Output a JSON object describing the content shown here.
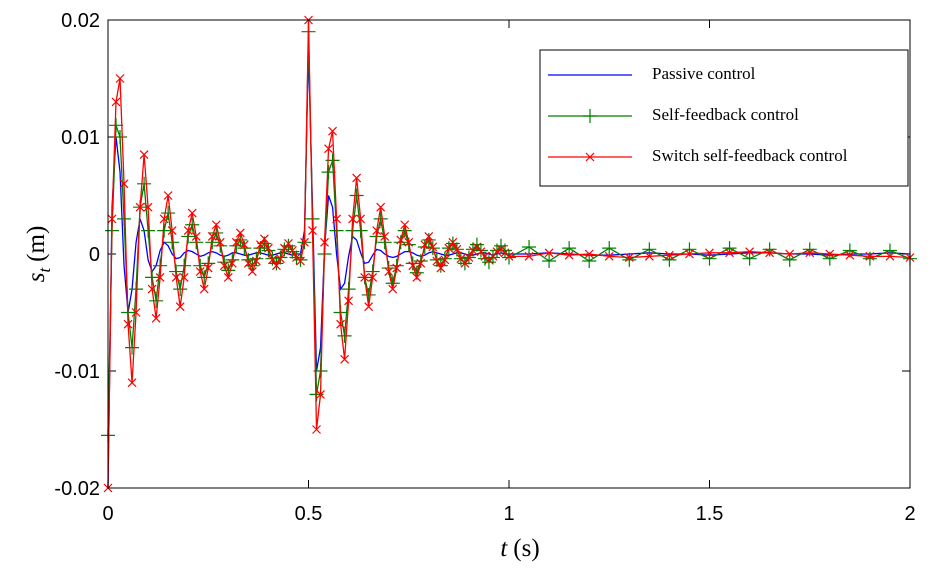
{
  "chart_data": {
    "type": "line",
    "xlabel": {
      "symbol": "t",
      "unit": "(s)"
    },
    "ylabel": {
      "symbol": "s",
      "subscript": "t",
      "unit": "(m)"
    },
    "xlim": [
      0,
      2
    ],
    "xticks": [
      0,
      0.5,
      1,
      1.5,
      2
    ],
    "ylim": [
      -0.02,
      0.02
    ],
    "yticks": [
      0.02,
      0.01,
      0,
      -0.01,
      -0.02
    ],
    "grid": false,
    "legend": "upper right",
    "x": [
      0,
      0.01,
      0.02,
      0.03,
      0.04,
      0.05,
      0.06,
      0.07,
      0.08,
      0.09,
      0.1,
      0.11,
      0.12,
      0.13,
      0.14,
      0.15,
      0.16,
      0.17,
      0.18,
      0.19,
      0.2,
      0.21,
      0.22,
      0.23,
      0.24,
      0.25,
      0.26,
      0.27,
      0.28,
      0.29,
      0.3,
      0.31,
      0.32,
      0.33,
      0.34,
      0.35,
      0.36,
      0.37,
      0.38,
      0.39,
      0.4,
      0.41,
      0.42,
      0.43,
      0.44,
      0.45,
      0.46,
      0.47,
      0.48,
      0.49,
      0.5,
      0.51,
      0.52,
      0.53,
      0.54,
      0.55,
      0.56,
      0.57,
      0.58,
      0.59,
      0.6,
      0.61,
      0.62,
      0.63,
      0.64,
      0.65,
      0.66,
      0.67,
      0.68,
      0.69,
      0.7,
      0.71,
      0.72,
      0.73,
      0.74,
      0.75,
      0.76,
      0.77,
      0.78,
      0.79,
      0.8,
      0.81,
      0.82,
      0.83,
      0.84,
      0.85,
      0.86,
      0.87,
      0.88,
      0.89,
      0.9,
      0.91,
      0.92,
      0.93,
      0.94,
      0.95,
      0.96,
      0.97,
      0.98,
      0.99,
      1.0,
      1.05,
      1.1,
      1.15,
      1.2,
      1.25,
      1.3,
      1.35,
      1.4,
      1.45,
      1.5,
      1.55,
      1.6,
      1.65,
      1.7,
      1.75,
      1.8,
      1.85,
      1.9,
      1.95,
      2.0
    ],
    "series": [
      {
        "name": "Passive control",
        "color": "#0000ff",
        "marker": "none",
        "values": [
          -0.02,
          0.004,
          0.01,
          0.007,
          -0.001,
          -0.005,
          -0.003,
          0.001,
          0.003,
          0.002,
          -0.0005,
          -0.0015,
          -0.001,
          0.0003,
          0.001,
          0.0007,
          0,
          -0.0004,
          -0.0003,
          0.0001,
          0.0003,
          0.0002,
          0,
          -0.0002,
          -0.0001,
          0.0001,
          0.0002,
          0.0001,
          -0.0001,
          -0.0002,
          -0.0001,
          0.0001,
          0.0001,
          0,
          -0.0001,
          -0.0001,
          0,
          0.0001,
          0.0001,
          0,
          -0.0001,
          -0.0001,
          0,
          0.0001,
          0.0001,
          0,
          -0.0001,
          0,
          0,
          0.002,
          0.0175,
          0.004,
          -0.01,
          -0.008,
          0.0005,
          0.005,
          0.004,
          0,
          -0.003,
          -0.0025,
          -0.0002,
          0.0015,
          0.0012,
          0.0001,
          -0.0008,
          -0.0007,
          -0.0001,
          0.0004,
          0.0003,
          0,
          -0.0002,
          -0.0003,
          -0.0002,
          0,
          0.0002,
          0.0002,
          0.0001,
          -0.0001,
          -0.0002,
          -0.0001,
          0.0001,
          0.0002,
          0.0001,
          0,
          -0.0001,
          -0.0001,
          0,
          0.0001,
          0.0001,
          0,
          -0.0001,
          -0.0001,
          0,
          0.0001,
          0.0001,
          0,
          -0.0001,
          0,
          0.0001,
          0,
          0,
          0,
          0.0001,
          0,
          -0.0001,
          -0.0001,
          0,
          0.0001,
          0,
          0,
          -0.0001,
          0,
          0.0001,
          0.0001,
          0,
          0,
          -0.0001,
          0,
          0,
          0.0001,
          0
        ]
      },
      {
        "name": "Self-feedback control",
        "color": "#008000",
        "marker": "+",
        "values": [
          -0.0155,
          0.002,
          0.011,
          0.01,
          0.003,
          -0.005,
          -0.008,
          -0.003,
          0.004,
          0.006,
          0.002,
          -0.002,
          -0.004,
          -0.001,
          0.002,
          0.0035,
          0.001,
          -0.0015,
          -0.003,
          -0.001,
          0.0015,
          0.0025,
          0.001,
          -0.001,
          -0.002,
          -0.0008,
          0.001,
          0.0018,
          0.0007,
          -0.0007,
          -0.0014,
          -0.0005,
          0.0007,
          0.0012,
          0.0005,
          -0.0005,
          -0.001,
          -0.0004,
          0.0005,
          0.0009,
          0.0003,
          -0.0004,
          -0.0008,
          -0.0003,
          0.0004,
          0.0007,
          0.0002,
          -0.0003,
          -0.0005,
          0.001,
          0.019,
          0.003,
          -0.012,
          -0.01,
          0,
          0.007,
          0.008,
          0.002,
          -0.005,
          -0.007,
          -0.003,
          0.002,
          0.005,
          0.002,
          -0.002,
          -0.0035,
          -0.0015,
          0.0015,
          0.003,
          0.001,
          -0.0012,
          -0.0025,
          -0.001,
          0.001,
          0.002,
          0.0008,
          -0.0008,
          -0.0016,
          -0.0006,
          0.0006,
          0.0012,
          0.0005,
          -0.0005,
          -0.001,
          -0.0004,
          0.0005,
          0.0009,
          0.0004,
          -0.0004,
          -0.0008,
          -0.0003,
          0.0004,
          0.0008,
          0.0003,
          -0.0004,
          -0.0007,
          -0.0003,
          0.0003,
          0.0007,
          0.0003,
          -0.0003,
          0.0006,
          -0.0006,
          0.0005,
          -0.0006,
          0.0005,
          -0.0005,
          0.0004,
          -0.0005,
          0.0004,
          -0.0004,
          0.0005,
          -0.0004,
          0.0004,
          -0.0005,
          0.0004,
          -0.0004,
          0.0003,
          -0.0004,
          0.0003,
          -0.0004
        ]
      },
      {
        "name": "Switch self-feedback control",
        "color": "#ff0000",
        "marker": "x",
        "values": [
          -0.02,
          0.003,
          0.013,
          0.015,
          0.006,
          -0.006,
          -0.011,
          -0.005,
          0.004,
          0.0085,
          0.004,
          -0.003,
          -0.0055,
          -0.002,
          0.003,
          0.005,
          0.002,
          -0.002,
          -0.0045,
          -0.002,
          0.002,
          0.0035,
          0.0015,
          -0.0015,
          -0.003,
          -0.0012,
          0.0015,
          0.0025,
          0.001,
          -0.001,
          -0.002,
          -0.0008,
          0.001,
          0.0018,
          0.0008,
          -0.0008,
          -0.0015,
          -0.0006,
          0.0008,
          0.0013,
          0.0005,
          -0.0005,
          -0.001,
          -0.0004,
          0.0005,
          0.0009,
          0.0003,
          -0.0003,
          -0.0006,
          0.001,
          0.02,
          0.002,
          -0.015,
          -0.012,
          0.001,
          0.009,
          0.0105,
          0.003,
          -0.006,
          -0.009,
          -0.004,
          0.003,
          0.0065,
          0.003,
          -0.002,
          -0.0045,
          -0.002,
          0.002,
          0.004,
          0.0015,
          -0.0015,
          -0.003,
          -0.0012,
          0.0012,
          0.0025,
          0.001,
          -0.001,
          -0.002,
          -0.0008,
          0.0008,
          0.0015,
          0.0006,
          -0.0006,
          -0.0012,
          -0.0005,
          0.0005,
          0.001,
          0.0004,
          -0.0004,
          -0.0008,
          -0.0003,
          0.0003,
          0.0006,
          0.0002,
          -0.0002,
          -0.0005,
          -0.0002,
          0.0002,
          0.0004,
          0.0001,
          -0.0002,
          -0.0002,
          0.0001,
          -0.0001,
          0,
          -0.0002,
          -0.0003,
          -0.0002,
          -0.0001,
          0,
          0.0001,
          0.0001,
          0.0002,
          0.0001,
          0,
          0.0001,
          0,
          -0.0001,
          -0.0002,
          -0.0002,
          -0.0003
        ]
      }
    ]
  }
}
